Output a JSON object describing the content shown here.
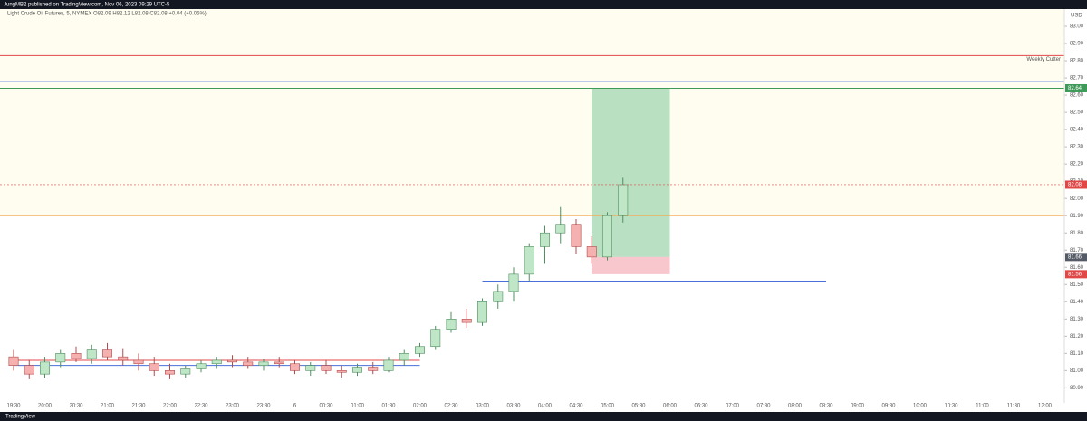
{
  "header": {
    "publisher": "JungMB2 published on TradingView.com, Nov 06, 2023 09:29 UTC-5",
    "brand": "TradingView"
  },
  "chart_data": {
    "type": "candlestick",
    "title": "Light Crude Oil Futures, 5, NYMEX  O82.09 H82.12 L82.08 C82.08 +0.04 (+0.05%)",
    "currency": "USD",
    "x": [
      "19:30",
      "19:45",
      "20:00",
      "20:15",
      "20:30",
      "20:45",
      "21:00",
      "21:15",
      "21:30",
      "21:45",
      "22:00",
      "22:15",
      "22:30",
      "22:45",
      "23:00",
      "23:15",
      "23:30",
      "23:45",
      "00:00",
      "00:15",
      "00:30",
      "00:45",
      "01:00",
      "01:15",
      "01:30",
      "01:45",
      "02:00",
      "02:15",
      "02:30",
      "02:45",
      "03:00",
      "03:15",
      "03:30",
      "03:45",
      "04:00",
      "04:15",
      "04:30",
      "04:45",
      "05:00",
      "05:15"
    ],
    "open": [
      81.08,
      81.03,
      80.98,
      81.05,
      81.1,
      81.07,
      81.12,
      81.08,
      81.06,
      81.04,
      81.0,
      80.98,
      81.01,
      81.04,
      81.06,
      81.05,
      81.03,
      81.05,
      81.04,
      81.0,
      81.03,
      81.0,
      80.99,
      81.02,
      81.0,
      81.06,
      81.1,
      81.14,
      81.24,
      81.3,
      81.28,
      81.4,
      81.46,
      81.56,
      81.72,
      81.8,
      81.85,
      81.72,
      81.66,
      81.9
    ],
    "high": [
      81.12,
      81.06,
      81.08,
      81.12,
      81.14,
      81.15,
      81.16,
      81.13,
      81.1,
      81.08,
      81.04,
      81.03,
      81.06,
      81.08,
      81.09,
      81.08,
      81.07,
      81.08,
      81.06,
      81.05,
      81.06,
      81.03,
      81.04,
      81.05,
      81.08,
      81.12,
      81.16,
      81.26,
      81.34,
      81.36,
      81.42,
      81.5,
      81.6,
      81.74,
      81.84,
      81.95,
      81.88,
      81.78,
      81.92,
      82.12
    ],
    "low": [
      81.0,
      80.95,
      80.96,
      81.02,
      81.05,
      81.04,
      81.06,
      81.03,
      81.0,
      80.97,
      80.95,
      80.96,
      80.99,
      81.01,
      81.02,
      81.01,
      81.0,
      81.02,
      80.98,
      80.97,
      80.98,
      80.96,
      80.97,
      80.98,
      80.99,
      81.03,
      81.08,
      81.12,
      81.22,
      81.25,
      81.26,
      81.36,
      81.4,
      81.52,
      81.62,
      81.74,
      81.68,
      81.62,
      81.64,
      81.86
    ],
    "close": [
      81.03,
      80.98,
      81.05,
      81.1,
      81.07,
      81.12,
      81.08,
      81.06,
      81.04,
      81.0,
      80.98,
      81.01,
      81.04,
      81.06,
      81.05,
      81.03,
      81.05,
      81.04,
      81.0,
      81.03,
      81.0,
      80.99,
      81.02,
      81.0,
      81.06,
      81.1,
      81.14,
      81.24,
      81.3,
      81.28,
      81.4,
      81.46,
      81.56,
      81.72,
      81.8,
      81.85,
      81.72,
      81.66,
      81.9,
      82.08
    ],
    "up_color": "#bfe6c6",
    "up_border": "#4f8f5f",
    "down_color": "#f5b0b0",
    "down_border": "#b44a4a",
    "ylim": [
      80.76,
      83.1
    ],
    "yticks": [
      {
        "value": 80.9,
        "label": "80.90"
      },
      {
        "value": 81.0,
        "label": "81.00"
      },
      {
        "value": 81.1,
        "label": "81.10"
      },
      {
        "value": 81.2,
        "label": "81.20"
      },
      {
        "value": 81.3,
        "label": "81.30"
      },
      {
        "value": 81.4,
        "label": "81.40"
      },
      {
        "value": 81.5,
        "label": "81.50"
      },
      {
        "value": 81.6,
        "label": "81.60"
      },
      {
        "value": 81.7,
        "label": "81.70"
      },
      {
        "value": 81.8,
        "label": "81.80"
      },
      {
        "value": 81.9,
        "label": "81.90"
      },
      {
        "value": 82.0,
        "label": "82.00"
      },
      {
        "value": 82.1,
        "label": "82.10"
      },
      {
        "value": 82.2,
        "label": "82.20"
      },
      {
        "value": 82.3,
        "label": "82.30"
      },
      {
        "value": 82.4,
        "label": "82.40"
      },
      {
        "value": 82.5,
        "label": "82.50"
      },
      {
        "value": 82.6,
        "label": "82.60"
      },
      {
        "value": 82.7,
        "label": "82.70"
      },
      {
        "value": 82.8,
        "label": "82.80"
      },
      {
        "value": 82.9,
        "label": "82.90"
      },
      {
        "value": 83.0,
        "label": "83.00"
      }
    ],
    "xticks": [
      "19:30",
      "20:00",
      "20:30",
      "21:00",
      "21:30",
      "22:00",
      "22:30",
      "23:00",
      "23:30",
      "6",
      "00:30",
      "01:00",
      "01:30",
      "02:00",
      "02:30",
      "03:00",
      "03:30",
      "04:00",
      "04:30",
      "05:00",
      "05:30",
      "06:00",
      "06:30",
      "07:00",
      "07:30",
      "08:00",
      "08:30",
      "09:00",
      "09:30",
      "10:00",
      "10:30",
      "11:00",
      "11:30",
      "12:00"
    ],
    "levels": [
      {
        "value": 82.83,
        "color": "#e04848",
        "label": "Weekly Cutter"
      },
      {
        "value": 82.68,
        "color": "#4a6fd8"
      },
      {
        "value": 82.64,
        "color": "#3f9a5a"
      },
      {
        "value": 81.9,
        "color": "#f0b060"
      },
      {
        "value": 81.52,
        "color": "#4a6fd8",
        "start": "03:00",
        "end": "08:30"
      },
      {
        "value": 81.06,
        "color": "#e04848",
        "start": "19:30",
        "end": "02:00"
      },
      {
        "value": 81.03,
        "color": "#4a6fd8",
        "start": "19:30",
        "end": "02:00"
      }
    ],
    "position": {
      "start": "04:45",
      "end": "06:00",
      "entry": 81.66,
      "target": 82.64,
      "stop": 81.56,
      "profit_color": "#a8d8b4",
      "loss_color": "#f6b8c0"
    },
    "background": "#fffdf0"
  }
}
